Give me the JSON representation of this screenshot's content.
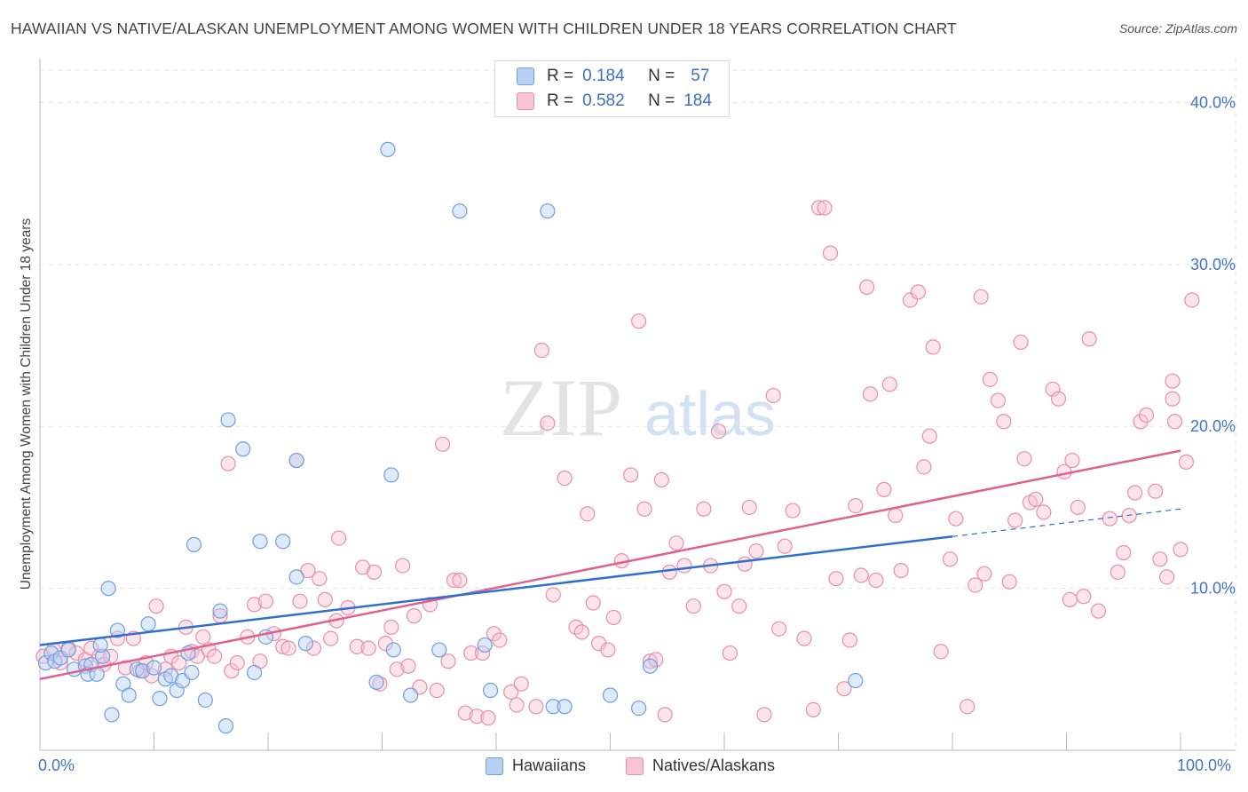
{
  "header": {
    "title": "HAWAIIAN VS NATIVE/ALASKAN UNEMPLOYMENT AMONG WOMEN WITH CHILDREN UNDER 18 YEARS CORRELATION CHART",
    "source": "Source: ZipAtlas.com"
  },
  "watermark": {
    "zip": "ZIP",
    "atlas": "atlas"
  },
  "legend_top": {
    "rows": [
      {
        "r_label": "R =",
        "r_value": "0.184",
        "n_label": "N =",
        "n_value": "57"
      },
      {
        "r_label": "R =",
        "r_value": "0.582",
        "n_label": "N =",
        "n_value": "184"
      }
    ]
  },
  "legend_bottom": {
    "items": [
      "Hawaiians",
      "Natives/Alaskans"
    ]
  },
  "colors": {
    "hawaiians_fill": "#b8d0f2",
    "hawaiians_stroke": "#6f9ee0",
    "hawaiians_line": "#2f6fd0",
    "natives_fill": "#f8c4d3",
    "natives_stroke": "#e98fab",
    "natives_line": "#e0608e",
    "tick_label": "#4472c4",
    "grid": "#e3e3e3"
  },
  "chart_data": {
    "type": "scatter",
    "title": "HAWAIIAN VS NATIVE/ALASKAN UNEMPLOYMENT AMONG WOMEN WITH CHILDREN UNDER 18 YEARS CORRELATION CHART",
    "xlabel": "",
    "ylabel": "Unemployment Among Women with Children Under 18 years",
    "xlim": [
      0,
      100
    ],
    "ylim": [
      0,
      42
    ],
    "x_tick_labels": [
      "0.0%",
      "100.0%"
    ],
    "y_ticks": [
      10,
      20,
      30,
      40
    ],
    "y_tick_labels": [
      "10.0%",
      "20.0%",
      "30.0%",
      "40.0%"
    ],
    "grid": true,
    "legend": "top-center",
    "series": [
      {
        "name": "Hawaiians",
        "R": 0.184,
        "N": 57,
        "trend": {
          "x": [
            0,
            80
          ],
          "y": [
            6.5,
            13.2
          ],
          "dashed_to": [
            100,
            14.9
          ]
        },
        "points": [
          [
            0.5,
            5.4
          ],
          [
            1.0,
            6.0
          ],
          [
            1.3,
            5.5
          ],
          [
            1.8,
            5.7
          ],
          [
            2.5,
            6.2
          ],
          [
            3.0,
            5.0
          ],
          [
            4.0,
            5.2
          ],
          [
            4.2,
            4.7
          ],
          [
            4.5,
            5.3
          ],
          [
            5.0,
            4.7
          ],
          [
            5.5,
            5.8
          ],
          [
            5.3,
            6.5
          ],
          [
            6.0,
            10.0
          ],
          [
            6.3,
            2.2
          ],
          [
            6.8,
            7.4
          ],
          [
            7.3,
            4.1
          ],
          [
            7.8,
            3.4
          ],
          [
            8.5,
            5.0
          ],
          [
            9.0,
            4.9
          ],
          [
            9.5,
            7.8
          ],
          [
            10.0,
            5.1
          ],
          [
            10.5,
            3.2
          ],
          [
            11.0,
            4.4
          ],
          [
            11.5,
            4.6
          ],
          [
            12.0,
            3.7
          ],
          [
            12.5,
            4.3
          ],
          [
            13.0,
            6.0
          ],
          [
            13.3,
            4.8
          ],
          [
            13.5,
            12.7
          ],
          [
            14.5,
            3.1
          ],
          [
            15.8,
            8.6
          ],
          [
            16.3,
            1.5
          ],
          [
            16.5,
            20.4
          ],
          [
            17.8,
            18.6
          ],
          [
            18.8,
            4.8
          ],
          [
            19.3,
            12.9
          ],
          [
            19.8,
            7.0
          ],
          [
            21.3,
            12.9
          ],
          [
            22.5,
            10.7
          ],
          [
            22.5,
            17.9
          ],
          [
            23.3,
            6.6
          ],
          [
            29.5,
            4.2
          ],
          [
            30.5,
            37.1
          ],
          [
            30.8,
            17.0
          ],
          [
            31.0,
            6.2
          ],
          [
            32.5,
            3.4
          ],
          [
            35.0,
            6.2
          ],
          [
            36.8,
            33.3
          ],
          [
            39.0,
            6.5
          ],
          [
            39.5,
            3.7
          ],
          [
            44.5,
            33.3
          ],
          [
            45.0,
            2.7
          ],
          [
            46.0,
            2.7
          ],
          [
            50.0,
            3.4
          ],
          [
            52.5,
            2.6
          ],
          [
            53.5,
            5.2
          ],
          [
            71.5,
            4.3
          ]
        ]
      },
      {
        "name": "Natives/Alaskans",
        "R": 0.582,
        "N": 184,
        "trend": {
          "x": [
            0,
            100
          ],
          "y": [
            4.4,
            18.5
          ]
        },
        "points": [
          [
            0.3,
            5.8
          ],
          [
            1.2,
            6.2
          ],
          [
            1.8,
            5.4
          ],
          [
            2.5,
            6.3
          ],
          [
            3.2,
            6.0
          ],
          [
            4.0,
            5.6
          ],
          [
            4.5,
            6.3
          ],
          [
            5.2,
            5.8
          ],
          [
            5.6,
            5.3
          ],
          [
            6.2,
            5.8
          ],
          [
            6.8,
            6.9
          ],
          [
            7.5,
            5.1
          ],
          [
            8.2,
            6.9
          ],
          [
            8.8,
            4.9
          ],
          [
            9.3,
            5.4
          ],
          [
            9.8,
            4.6
          ],
          [
            10.2,
            8.9
          ],
          [
            11.0,
            5.0
          ],
          [
            11.5,
            5.8
          ],
          [
            12.2,
            5.4
          ],
          [
            12.8,
            7.6
          ],
          [
            13.3,
            6.1
          ],
          [
            13.8,
            5.8
          ],
          [
            14.3,
            7.0
          ],
          [
            14.8,
            6.2
          ],
          [
            15.3,
            5.8
          ],
          [
            15.8,
            8.3
          ],
          [
            16.5,
            17.7
          ],
          [
            16.8,
            4.9
          ],
          [
            17.3,
            5.4
          ],
          [
            18.2,
            7.0
          ],
          [
            18.8,
            9.0
          ],
          [
            19.3,
            5.5
          ],
          [
            19.8,
            9.2
          ],
          [
            20.5,
            7.2
          ],
          [
            21.3,
            6.4
          ],
          [
            21.8,
            6.3
          ],
          [
            22.5,
            17.9
          ],
          [
            22.8,
            9.2
          ],
          [
            23.5,
            11.1
          ],
          [
            24.0,
            6.3
          ],
          [
            24.5,
            10.6
          ],
          [
            25.0,
            9.3
          ],
          [
            25.5,
            6.9
          ],
          [
            26.0,
            8.0
          ],
          [
            26.2,
            13.1
          ],
          [
            27.0,
            8.8
          ],
          [
            27.8,
            6.4
          ],
          [
            28.3,
            11.3
          ],
          [
            28.8,
            6.3
          ],
          [
            29.3,
            11.0
          ],
          [
            29.8,
            4.1
          ],
          [
            30.3,
            6.6
          ],
          [
            30.8,
            7.6
          ],
          [
            31.3,
            5.0
          ],
          [
            31.8,
            11.4
          ],
          [
            32.3,
            5.2
          ],
          [
            32.8,
            8.3
          ],
          [
            33.3,
            3.9
          ],
          [
            34.2,
            9.0
          ],
          [
            34.8,
            3.7
          ],
          [
            35.3,
            18.9
          ],
          [
            35.8,
            5.5
          ],
          [
            36.3,
            10.5
          ],
          [
            36.8,
            10.5
          ],
          [
            37.3,
            2.3
          ],
          [
            37.8,
            6.0
          ],
          [
            38.3,
            2.1
          ],
          [
            38.8,
            6.0
          ],
          [
            39.3,
            2.0
          ],
          [
            39.8,
            7.2
          ],
          [
            40.3,
            6.8
          ],
          [
            41.3,
            3.6
          ],
          [
            41.8,
            2.8
          ],
          [
            42.2,
            4.1
          ],
          [
            43.5,
            2.7
          ],
          [
            44.0,
            24.7
          ],
          [
            44.5,
            20.2
          ],
          [
            45.0,
            9.6
          ],
          [
            46.0,
            16.8
          ],
          [
            47.0,
            7.6
          ],
          [
            47.5,
            7.3
          ],
          [
            48.0,
            14.6
          ],
          [
            48.5,
            9.1
          ],
          [
            49.0,
            6.6
          ],
          [
            49.8,
            6.2
          ],
          [
            50.3,
            8.2
          ],
          [
            51.0,
            11.7
          ],
          [
            51.8,
            17.0
          ],
          [
            52.5,
            26.5
          ],
          [
            53.0,
            14.9
          ],
          [
            53.5,
            5.5
          ],
          [
            54.0,
            5.6
          ],
          [
            54.5,
            16.7
          ],
          [
            54.8,
            2.2
          ],
          [
            55.2,
            11.0
          ],
          [
            55.8,
            12.8
          ],
          [
            56.5,
            11.4
          ],
          [
            57.3,
            8.9
          ],
          [
            58.2,
            14.9
          ],
          [
            58.8,
            11.4
          ],
          [
            59.5,
            19.7
          ],
          [
            60.0,
            9.8
          ],
          [
            60.5,
            6.0
          ],
          [
            61.3,
            8.9
          ],
          [
            61.8,
            11.5
          ],
          [
            62.2,
            15.0
          ],
          [
            62.8,
            12.3
          ],
          [
            63.5,
            2.2
          ],
          [
            64.3,
            21.9
          ],
          [
            64.8,
            7.5
          ],
          [
            65.3,
            12.6
          ],
          [
            66.0,
            14.8
          ],
          [
            67.0,
            6.9
          ],
          [
            67.8,
            2.5
          ],
          [
            68.3,
            33.5
          ],
          [
            68.8,
            33.5
          ],
          [
            69.3,
            30.7
          ],
          [
            69.8,
            10.6
          ],
          [
            70.5,
            3.8
          ],
          [
            71.0,
            6.8
          ],
          [
            71.5,
            15.1
          ],
          [
            72.0,
            10.8
          ],
          [
            72.5,
            28.6
          ],
          [
            72.8,
            22.0
          ],
          [
            73.3,
            10.5
          ],
          [
            74.0,
            16.1
          ],
          [
            74.5,
            22.6
          ],
          [
            75.0,
            14.5
          ],
          [
            75.5,
            11.1
          ],
          [
            76.3,
            27.8
          ],
          [
            77.0,
            28.3
          ],
          [
            77.5,
            17.5
          ],
          [
            78.0,
            19.4
          ],
          [
            78.3,
            24.9
          ],
          [
            79.0,
            6.1
          ],
          [
            79.8,
            11.8
          ],
          [
            80.3,
            14.3
          ],
          [
            81.3,
            2.7
          ],
          [
            82.0,
            10.2
          ],
          [
            82.5,
            28.0
          ],
          [
            82.8,
            10.9
          ],
          [
            83.3,
            22.9
          ],
          [
            84.0,
            21.6
          ],
          [
            84.5,
            20.3
          ],
          [
            85.0,
            10.4
          ],
          [
            85.5,
            14.2
          ],
          [
            86.0,
            25.2
          ],
          [
            86.3,
            18.0
          ],
          [
            86.8,
            15.3
          ],
          [
            87.3,
            15.5
          ],
          [
            88.0,
            14.7
          ],
          [
            88.8,
            22.3
          ],
          [
            89.3,
            21.7
          ],
          [
            89.8,
            17.2
          ],
          [
            90.5,
            17.9
          ],
          [
            90.3,
            9.3
          ],
          [
            91.0,
            15.0
          ],
          [
            91.5,
            9.5
          ],
          [
            92.0,
            25.4
          ],
          [
            92.8,
            8.6
          ],
          [
            93.8,
            14.3
          ],
          [
            94.5,
            11.0
          ],
          [
            95.0,
            12.2
          ],
          [
            95.5,
            14.5
          ],
          [
            96.0,
            15.9
          ],
          [
            96.5,
            20.3
          ],
          [
            97.0,
            20.7
          ],
          [
            97.8,
            16.0
          ],
          [
            98.2,
            11.8
          ],
          [
            98.8,
            10.7
          ],
          [
            99.3,
            22.8
          ],
          [
            99.3,
            21.7
          ],
          [
            99.5,
            20.3
          ],
          [
            100.0,
            12.4
          ],
          [
            100.5,
            17.8
          ],
          [
            101.0,
            27.8
          ]
        ]
      }
    ]
  }
}
